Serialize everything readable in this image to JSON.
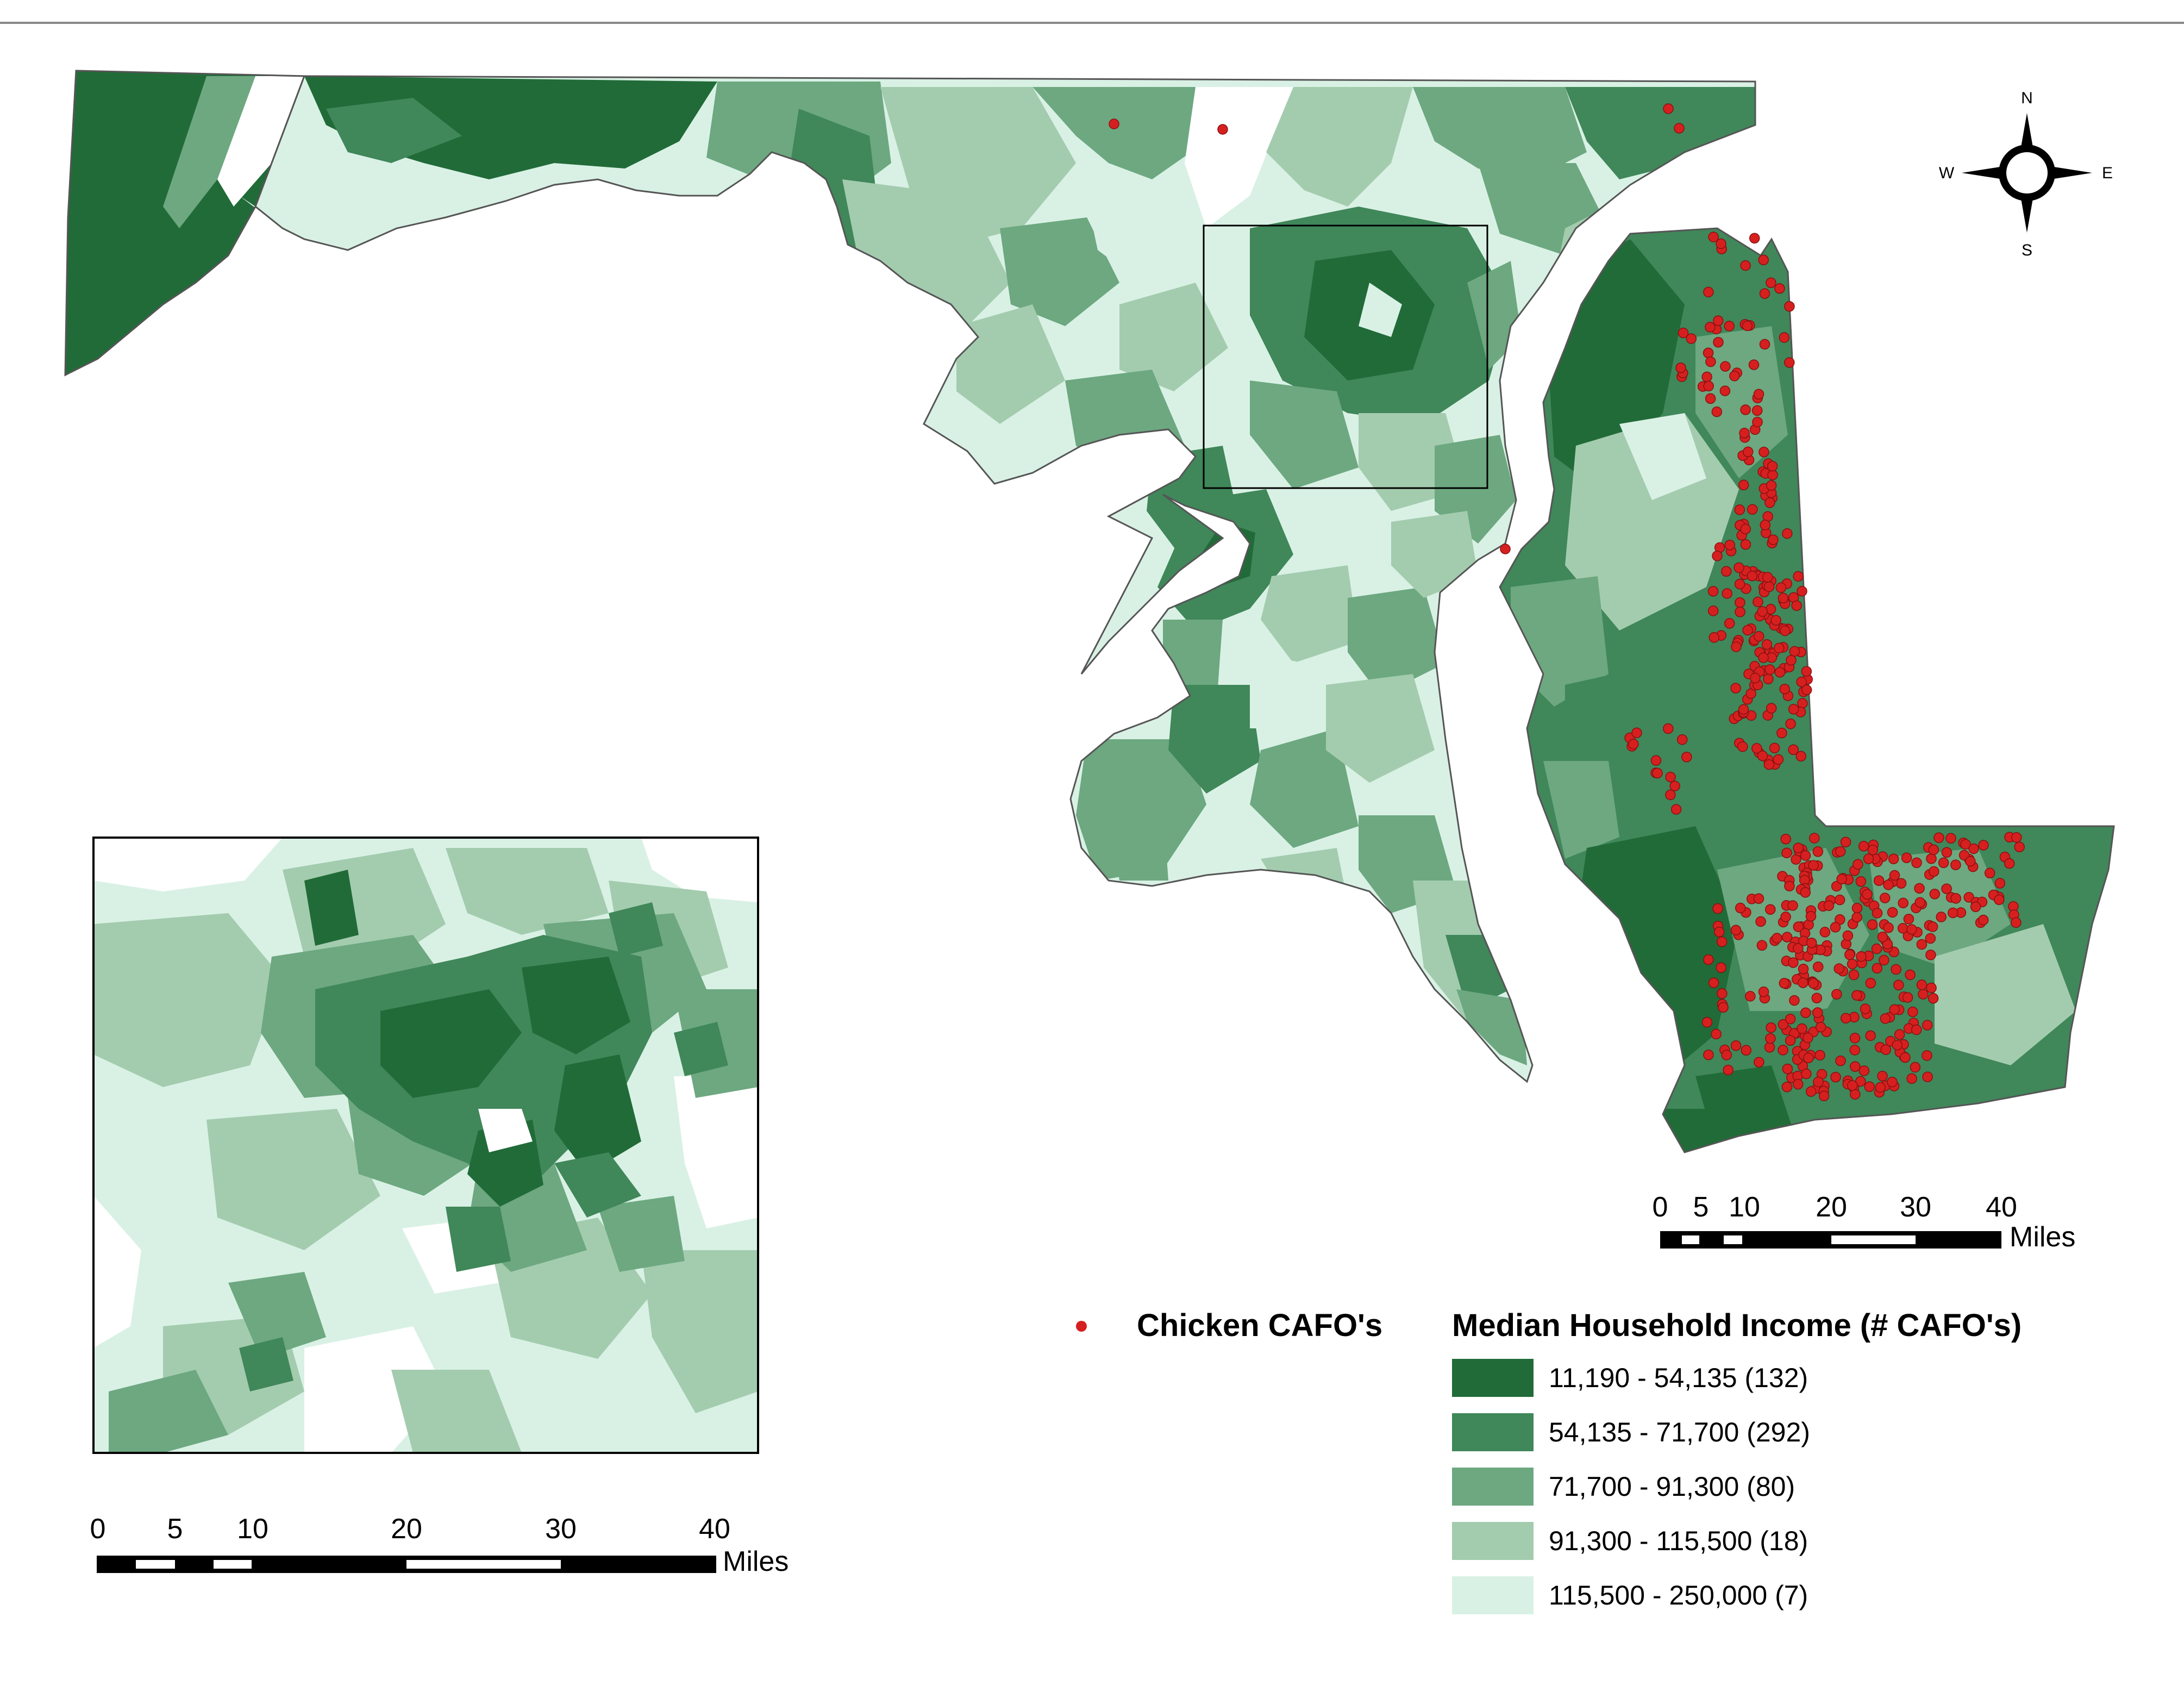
{
  "map": {
    "compass": {
      "north": "N",
      "south": "S",
      "east": "E",
      "west": "W"
    },
    "scale_main": {
      "ticks": [
        "0",
        "5",
        "10",
        "20",
        "30",
        "40"
      ],
      "units": "Miles"
    },
    "scale_inset": {
      "ticks": [
        "0",
        "5",
        "10",
        "20",
        "30",
        "40"
      ],
      "units": "Miles"
    },
    "legend": {
      "points_label": "Chicken CAFO's",
      "points_color": "#d62020",
      "title": "Median Household Income (# CAFO's)",
      "classes": [
        {
          "label": "11,190 - 54,135 (132)",
          "color": "#216b38"
        },
        {
          "label": "54,135 - 71,700 (292)",
          "color": "#40875a"
        },
        {
          "label": "71,700 - 91,300 (80)",
          "color": "#6da880"
        },
        {
          "label": "91,300 - 115,500 (18)",
          "color": "#a3ccae"
        },
        {
          "label": "115,500 - 250,000 (7)",
          "color": "#d9f1e5"
        }
      ]
    }
  }
}
